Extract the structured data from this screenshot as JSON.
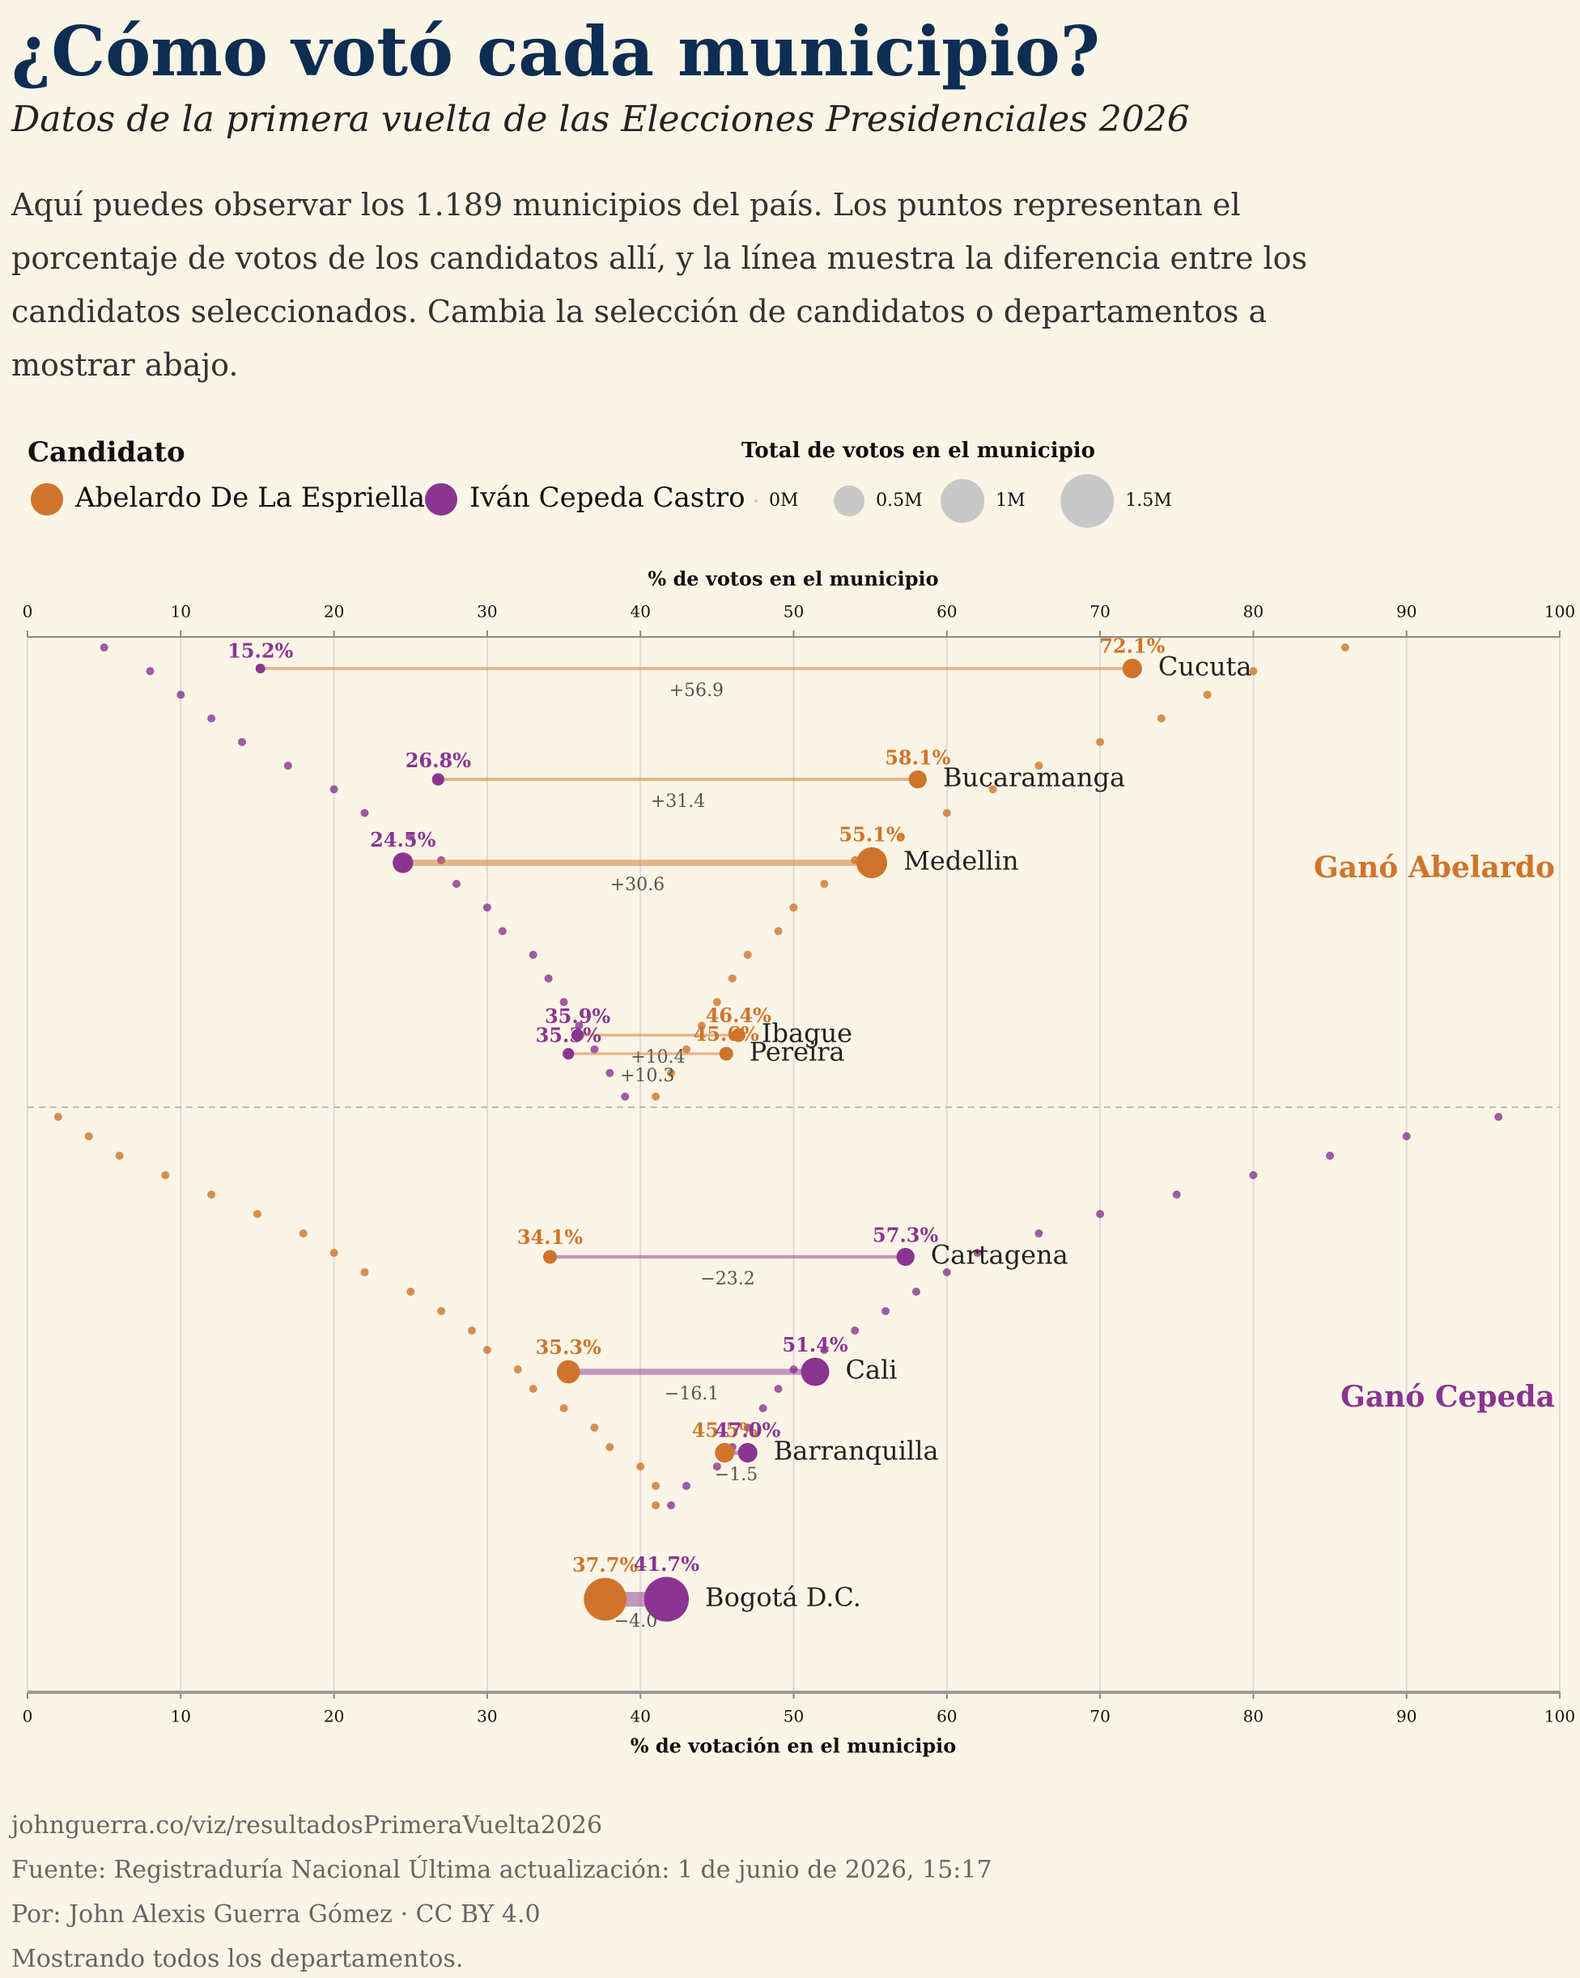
{
  "chart_data": {
    "type": "dumbbell",
    "title": "¿Cómo votó cada municipio?",
    "subtitle": "Datos de la primera vuelta de las Elecciones Presidenciales 2026",
    "description": "Aquí puedes observar los 1.189 municipios del país. Los puntos representan el porcentaje de votos de los candidatos allí, y la línea muestra la diferencia entre los candidatos seleccionados. Cambia la selección de candidatos o departamentos a mostrar abajo.",
    "legend_title": "Candidato",
    "series": [
      {
        "name": "Abelardo De La Espriella",
        "color": "#d0742c"
      },
      {
        "name": "Iván Cepeda Castro",
        "color": "#8a3592"
      }
    ],
    "size_legend": {
      "title": "Total de votos en el municipio",
      "ticks": [
        {
          "value": 0,
          "label": "0M"
        },
        {
          "value": 0.5,
          "label": "0.5M"
        },
        {
          "value": 1,
          "label": "1M"
        },
        {
          "value": 1.5,
          "label": "1.5M"
        }
      ]
    },
    "xlabel_top": "% de votos en el municipio",
    "xlabel_bottom": "% de votación en el municipio",
    "xlim": [
      0,
      100
    ],
    "xticks": [
      0,
      10,
      20,
      30,
      40,
      50,
      60,
      70,
      80,
      90,
      100
    ],
    "grid": true,
    "gano_abelardo": {
      "label": "Ganó Abelardo",
      "abelardo": [
        86,
        80,
        77,
        74,
        70,
        66,
        63,
        60,
        57,
        54,
        52,
        50,
        49,
        47,
        46,
        45,
        44,
        43,
        42,
        41
      ],
      "cepeda": [
        5,
        8,
        10,
        12,
        14,
        17,
        20,
        22,
        25,
        27,
        28,
        30,
        31,
        33,
        34,
        35,
        36,
        37,
        38,
        39
      ]
    },
    "gano_cepeda": {
      "label": "Ganó Cepeda",
      "abelardo": [
        2,
        4,
        6,
        9,
        12,
        15,
        18,
        20,
        22,
        25,
        27,
        29,
        30,
        32,
        33,
        35,
        37,
        38,
        40,
        41,
        41
      ],
      "cepeda": [
        96,
        90,
        85,
        80,
        75,
        70,
        66,
        62,
        60,
        58,
        56,
        54,
        52,
        50,
        49,
        48,
        47,
        46,
        45,
        43,
        42
      ]
    },
    "ciudades": [
      {
        "name": "Cucuta",
        "abelardo": 72.1,
        "abelardo_label": "72.1%",
        "cepeda": 15.2,
        "cepeda_label": "15.2%",
        "diff": 56.9,
        "diff_label": "+56.9",
        "votos_abelardo": 0.2,
        "votos_cepeda": 0.03
      },
      {
        "name": "Bucaramanga",
        "abelardo": 58.1,
        "abelardo_label": "58.1%",
        "cepeda": 26.8,
        "cepeda_label": "26.8%",
        "diff": 31.4,
        "diff_label": "+31.4",
        "votos_abelardo": 0.17,
        "votos_cepeda": 0.08
      },
      {
        "name": "Medellin",
        "abelardo": 55.1,
        "abelardo_label": "55.1%",
        "cepeda": 24.5,
        "cepeda_label": "24.5%",
        "diff": 30.6,
        "diff_label": "+30.6",
        "votos_abelardo": 0.5,
        "votos_cepeda": 0.22
      },
      {
        "name": "Ibague",
        "abelardo": 46.4,
        "abelardo_label": "46.4%",
        "cepeda": 35.9,
        "cepeda_label": "35.9%",
        "diff": 10.4,
        "diff_label": "+10.4",
        "votos_abelardo": 0.1,
        "votos_cepeda": 0.08
      },
      {
        "name": "Pereira",
        "abelardo": 45.6,
        "abelardo_label": "45.6%",
        "cepeda": 35.3,
        "cepeda_label": "35.3%",
        "diff": 10.3,
        "diff_label": "+10.3",
        "votos_abelardo": 0.1,
        "votos_cepeda": 0.07
      },
      {
        "name": "Cartagena",
        "abelardo": 34.1,
        "abelardo_label": "34.1%",
        "cepeda": 57.3,
        "cepeda_label": "57.3%",
        "diff": -23.2,
        "diff_label": "−23.2",
        "votos_abelardo": 0.1,
        "votos_cepeda": 0.17
      },
      {
        "name": "Cali",
        "abelardo": 35.3,
        "abelardo_label": "35.3%",
        "cepeda": 51.4,
        "cepeda_label": "51.4%",
        "diff": -16.1,
        "diff_label": "−16.1",
        "votos_abelardo": 0.28,
        "votos_cepeda": 0.42
      },
      {
        "name": "Barranquilla",
        "abelardo": 45.5,
        "abelardo_label": "45.5%",
        "cepeda": 47.0,
        "cepeda_label": "47.0%",
        "diff": -1.5,
        "diff_label": "−1.5",
        "votos_abelardo": 0.2,
        "votos_cepeda": 0.2
      },
      {
        "name": "Bogotá D.C.",
        "abelardo": 37.7,
        "abelardo_label": "37.7%",
        "cepeda": 41.7,
        "cepeda_label": "41.7%",
        "diff": -4.0,
        "diff_label": "−4.0",
        "votos_abelardo": 0.95,
        "votos_cepeda": 1.05
      }
    ],
    "footer": [
      "johnguerra.co/viz/resultadosPrimeraVuelta2026",
      "Fuente: Registraduría Nacional Última actualización: 1 de junio de 2026, 15:17",
      "Por: John Alexis Guerra Gómez · CC BY 4.0",
      "Mostrando todos los departamentos."
    ]
  }
}
